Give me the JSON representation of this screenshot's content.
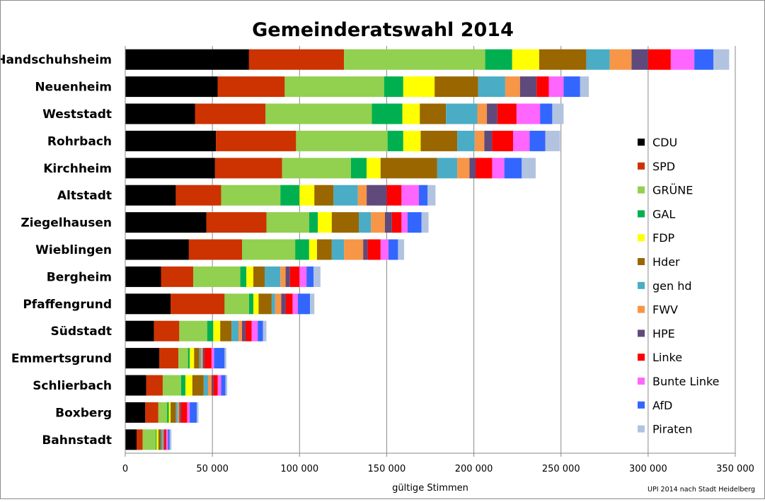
{
  "chart_data": {
    "type": "bar",
    "orientation": "horizontal",
    "stacked": true,
    "title": "Gemeinderatswahl 2014",
    "xlabel": "gültige Stimmen",
    "ylabel": "",
    "xlim": [
      0,
      350000
    ],
    "x_ticks": [
      0,
      50000,
      100000,
      150000,
      200000,
      250000,
      300000,
      350000
    ],
    "x_tick_labels": [
      "0",
      "50 000",
      "100 000",
      "150 000",
      "200 000",
      "250 000",
      "300 000",
      "350 000"
    ],
    "grid": "vertical major gridlines",
    "legend_position": "right",
    "source": "UPI 2014 nach Stadt Heidelberg",
    "categories": [
      "Handschuhsheim",
      "Neuenheim",
      "Weststadt",
      "Rohrbach",
      "Kirchheim",
      "Altstadt",
      "Ziegelhausen",
      "Wieblingen",
      "Bergheim",
      "Pfaffengrund",
      "Südstadt",
      "Emmertsgrund",
      "Schlierbach",
      "Boxberg",
      "Bahnstadt"
    ],
    "series": [
      {
        "name": "CDU",
        "color": "#000000",
        "values": [
          71000,
          53000,
          40000,
          52000,
          51500,
          29000,
          46500,
          36500,
          20500,
          26000,
          16500,
          19500,
          12000,
          11500,
          6500
        ]
      },
      {
        "name": "SPD",
        "color": "#cc3300",
        "values": [
          54500,
          38500,
          40500,
          46000,
          38500,
          26000,
          34500,
          30500,
          18500,
          31000,
          14500,
          11000,
          9500,
          7500,
          3500
        ]
      },
      {
        "name": "GRÜNE",
        "color": "#92d050",
        "values": [
          81000,
          57000,
          61000,
          52500,
          39500,
          34000,
          24500,
          30500,
          27000,
          14000,
          16000,
          5500,
          10500,
          5000,
          7500
        ]
      },
      {
        "name": "GAL",
        "color": "#00b050",
        "values": [
          15500,
          11000,
          17500,
          9000,
          9000,
          11000,
          5000,
          8000,
          3500,
          2500,
          3500,
          1000,
          2500,
          1000,
          500
        ]
      },
      {
        "name": "FDP",
        "color": "#ffff00",
        "values": [
          15500,
          18000,
          10000,
          10000,
          8000,
          8500,
          8000,
          4500,
          4000,
          3000,
          4000,
          2500,
          4000,
          1000,
          1000
        ]
      },
      {
        "name": "Hder",
        "color": "#996600",
        "values": [
          27000,
          25000,
          15000,
          21000,
          32500,
          11000,
          15500,
          8500,
          6500,
          7500,
          6500,
          3000,
          6500,
          3000,
          1500
        ]
      },
      {
        "name": "gen hd",
        "color": "#4bacc6",
        "values": [
          13500,
          15500,
          18000,
          10000,
          11500,
          14000,
          7000,
          7000,
          9000,
          2000,
          4000,
          1000,
          2500,
          1000,
          1000
        ]
      },
      {
        "name": "FWV",
        "color": "#f79646",
        "values": [
          12500,
          8500,
          5500,
          5500,
          7000,
          5000,
          8000,
          11000,
          3000,
          3500,
          2000,
          1000,
          2000,
          1000,
          500
        ]
      },
      {
        "name": "HPE",
        "color": "#604a7b",
        "values": [
          9500,
          9500,
          6000,
          4500,
          3500,
          11500,
          4000,
          2500,
          2500,
          2500,
          2000,
          1000,
          1000,
          1000,
          500
        ]
      },
      {
        "name": "Linke",
        "color": "#ff0000",
        "values": [
          13000,
          7000,
          11000,
          12000,
          9500,
          8500,
          5500,
          7500,
          5500,
          4000,
          3500,
          4000,
          2500,
          3500,
          1000
        ]
      },
      {
        "name": "Bunte Linke",
        "color": "#ff66ff",
        "values": [
          13500,
          8500,
          13500,
          9500,
          7000,
          10000,
          3500,
          4500,
          4000,
          3000,
          3500,
          1500,
          2000,
          1500,
          1000
        ]
      },
      {
        "name": "AfD",
        "color": "#3366ff",
        "values": [
          11000,
          9500,
          7000,
          9000,
          10000,
          5000,
          8000,
          5500,
          4000,
          7000,
          3000,
          6000,
          2500,
          4000,
          1000
        ]
      },
      {
        "name": "Piraten",
        "color": "#b2c3e0",
        "values": [
          9000,
          5000,
          6500,
          8500,
          8000,
          4500,
          4000,
          3500,
          4000,
          2500,
          2000,
          1000,
          1000,
          1000,
          1000
        ]
      }
    ]
  }
}
